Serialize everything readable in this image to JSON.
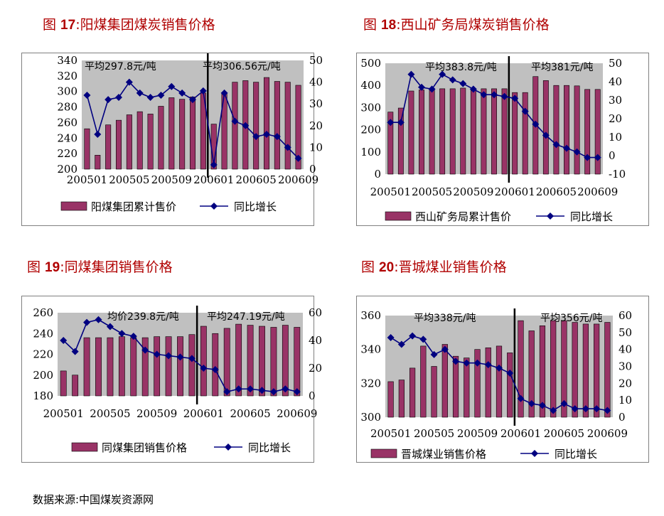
{
  "figures": [
    {
      "fig_label": "图 ",
      "fig_num": "17",
      "fig_sep": ":",
      "fig_text": "阳煤集团煤炭销售价格"
    },
    {
      "fig_label": "图 ",
      "fig_num": "18",
      "fig_sep": ":",
      "fig_text": "西山矿务局煤炭销售价格"
    },
    {
      "fig_label": "图 ",
      "fig_num": "19",
      "fig_sep": ":",
      "fig_text": "同煤集团销售价格"
    },
    {
      "fig_label": "图 ",
      "fig_num": "20",
      "fig_sep": ":",
      "fig_text": "晋城煤业销售价格"
    }
  ],
  "footer": "数据来源:中国煤炭资源网",
  "colors": {
    "bar": "#993366",
    "bar_border": "#000000",
    "line": "#000080",
    "plot_bg": "#c0c0c0",
    "divider": "#000000"
  },
  "chart_data": [
    {
      "type": "bar+line",
      "x": [
        "200501",
        "200502",
        "200503",
        "200504",
        "200505",
        "200506",
        "200507",
        "200508",
        "200509",
        "200510",
        "200511",
        "200512",
        "200601",
        "200602",
        "200603",
        "200604",
        "200605",
        "200606",
        "200607",
        "200608",
        "200609"
      ],
      "x_tick_labels": [
        "200501",
        "200505",
        "200509",
        "200601",
        "200605",
        "200609"
      ],
      "series": [
        {
          "name": "阳煤集团累计售价",
          "type": "bar",
          "axis": "left",
          "values": [
            252,
            218,
            257,
            263,
            270,
            274,
            271,
            281,
            292,
            290,
            293,
            298,
            258,
            298,
            312,
            314,
            312,
            318,
            313,
            312,
            308
          ]
        },
        {
          "name": "同比增长",
          "type": "line",
          "axis": "right",
          "values": [
            34,
            16,
            32,
            33,
            40,
            35,
            33,
            34,
            38,
            35,
            32,
            36,
            2,
            35,
            22,
            20,
            15,
            16,
            15,
            10,
            5
          ]
        }
      ],
      "left_axis": {
        "min": 200,
        "max": 340,
        "ticks": [
          200,
          220,
          240,
          260,
          280,
          300,
          320,
          340
        ]
      },
      "right_axis": {
        "min": 0,
        "max": 50,
        "ticks": [
          0,
          10,
          20,
          30,
          40,
          50
        ]
      },
      "divider_after": "200512",
      "annotations": [
        "平均297.8元/吨",
        "平均306.56元/吨"
      ],
      "legend": [
        "阳煤集团累计售价",
        "同比增长"
      ]
    },
    {
      "type": "bar+line",
      "x": [
        "200501",
        "200502",
        "200503",
        "200504",
        "200505",
        "200506",
        "200507",
        "200508",
        "200509",
        "200510",
        "200511",
        "200512",
        "200601",
        "200602",
        "200603",
        "200604",
        "200605",
        "200606",
        "200607",
        "200608",
        "200609"
      ],
      "x_tick_labels": [
        "200501",
        "200505",
        "200509",
        "200601",
        "200605",
        "200609"
      ],
      "series": [
        {
          "name": "西山矿务局累计售价",
          "type": "bar",
          "axis": "left",
          "values": [
            280,
            298,
            375,
            380,
            383,
            385,
            385,
            388,
            385,
            385,
            385,
            385,
            368,
            368,
            440,
            422,
            400,
            400,
            398,
            382,
            382
          ]
        },
        {
          "name": "同比增长",
          "type": "line",
          "axis": "right",
          "values": [
            18,
            18,
            44,
            37,
            36,
            44,
            41,
            39,
            36,
            33,
            33,
            32,
            31,
            24,
            17,
            11,
            6,
            4,
            2,
            -1,
            -1
          ]
        }
      ],
      "left_axis": {
        "min": 0,
        "max": 500,
        "ticks": [
          0,
          100,
          200,
          300,
          400,
          500
        ]
      },
      "right_axis": {
        "min": -10,
        "max": 50,
        "ticks": [
          -10,
          0,
          10,
          20,
          30,
          40,
          50
        ]
      },
      "divider_after": "200512",
      "annotations": [
        "平均383.8元/吨",
        "平均381元/吨"
      ],
      "legend": [
        "西山矿务局累计售价",
        "同比增长"
      ]
    },
    {
      "type": "bar+line",
      "x": [
        "200501",
        "200502",
        "200503",
        "200504",
        "200505",
        "200506",
        "200507",
        "200508",
        "200509",
        "200510",
        "200511",
        "200512",
        "200601",
        "200602",
        "200603",
        "200604",
        "200605",
        "200606",
        "200607",
        "200608",
        "200609"
      ],
      "x_tick_labels": [
        "200501",
        "200505",
        "200509",
        "200601",
        "200605",
        "200609"
      ],
      "series": [
        {
          "name": "同煤集团销售价格",
          "type": "bar",
          "axis": "left",
          "values": [
            204,
            200,
            236,
            236,
            236,
            237,
            236,
            236,
            237,
            237,
            237,
            239,
            247,
            240,
            245,
            249,
            248,
            247,
            246,
            248,
            246
          ]
        },
        {
          "name": "同比增长",
          "type": "line",
          "axis": "right",
          "values": [
            40,
            32,
            53,
            55,
            50,
            45,
            43,
            33,
            30,
            29,
            28,
            27,
            20,
            19,
            3,
            5,
            5,
            4,
            3,
            5,
            3
          ]
        }
      ],
      "left_axis": {
        "min": 180,
        "max": 260,
        "ticks": [
          180,
          200,
          220,
          240,
          260
        ]
      },
      "right_axis": {
        "min": 0,
        "max": 60,
        "ticks": [
          0,
          20,
          40,
          60
        ]
      },
      "divider_after": "200512",
      "annotations": [
        "均价239.8元/吨",
        "平均247.19元/吨"
      ],
      "legend": [
        "同煤集团销售价格",
        "同比增长"
      ]
    },
    {
      "type": "bar+line",
      "x": [
        "200501",
        "200502",
        "200503",
        "200504",
        "200505",
        "200506",
        "200507",
        "200508",
        "200509",
        "200510",
        "200511",
        "200512",
        "200601",
        "200602",
        "200603",
        "200604",
        "200605",
        "200606",
        "200607",
        "200608",
        "200609"
      ],
      "x_tick_labels": [
        "200501",
        "200505",
        "200509",
        "200601",
        "200605",
        "200609"
      ],
      "series": [
        {
          "name": "晋城煤业销售价格",
          "type": "bar",
          "axis": "left",
          "values": [
            321,
            322,
            329,
            342,
            330,
            343,
            336,
            335,
            340,
            341,
            342,
            338,
            357,
            351,
            354,
            357,
            357,
            356,
            355,
            355,
            356
          ]
        },
        {
          "name": "同比增长",
          "type": "line",
          "axis": "right",
          "values": [
            47,
            43,
            48,
            46,
            37,
            40,
            33,
            32,
            32,
            31,
            29,
            26,
            11,
            8,
            7,
            4,
            8,
            5,
            5,
            5,
            4
          ]
        }
      ],
      "left_axis": {
        "min": 300,
        "max": 360,
        "ticks": [
          300,
          320,
          340,
          360
        ]
      },
      "right_axis": {
        "min": 0,
        "max": 60,
        "ticks": [
          0,
          10,
          20,
          30,
          40,
          50,
          60
        ]
      },
      "divider_after": "200512",
      "annotations": [
        "平均338元/吨",
        "平均356元/吨"
      ],
      "legend": [
        "晋城煤业销售价格",
        "同比增长"
      ]
    }
  ]
}
